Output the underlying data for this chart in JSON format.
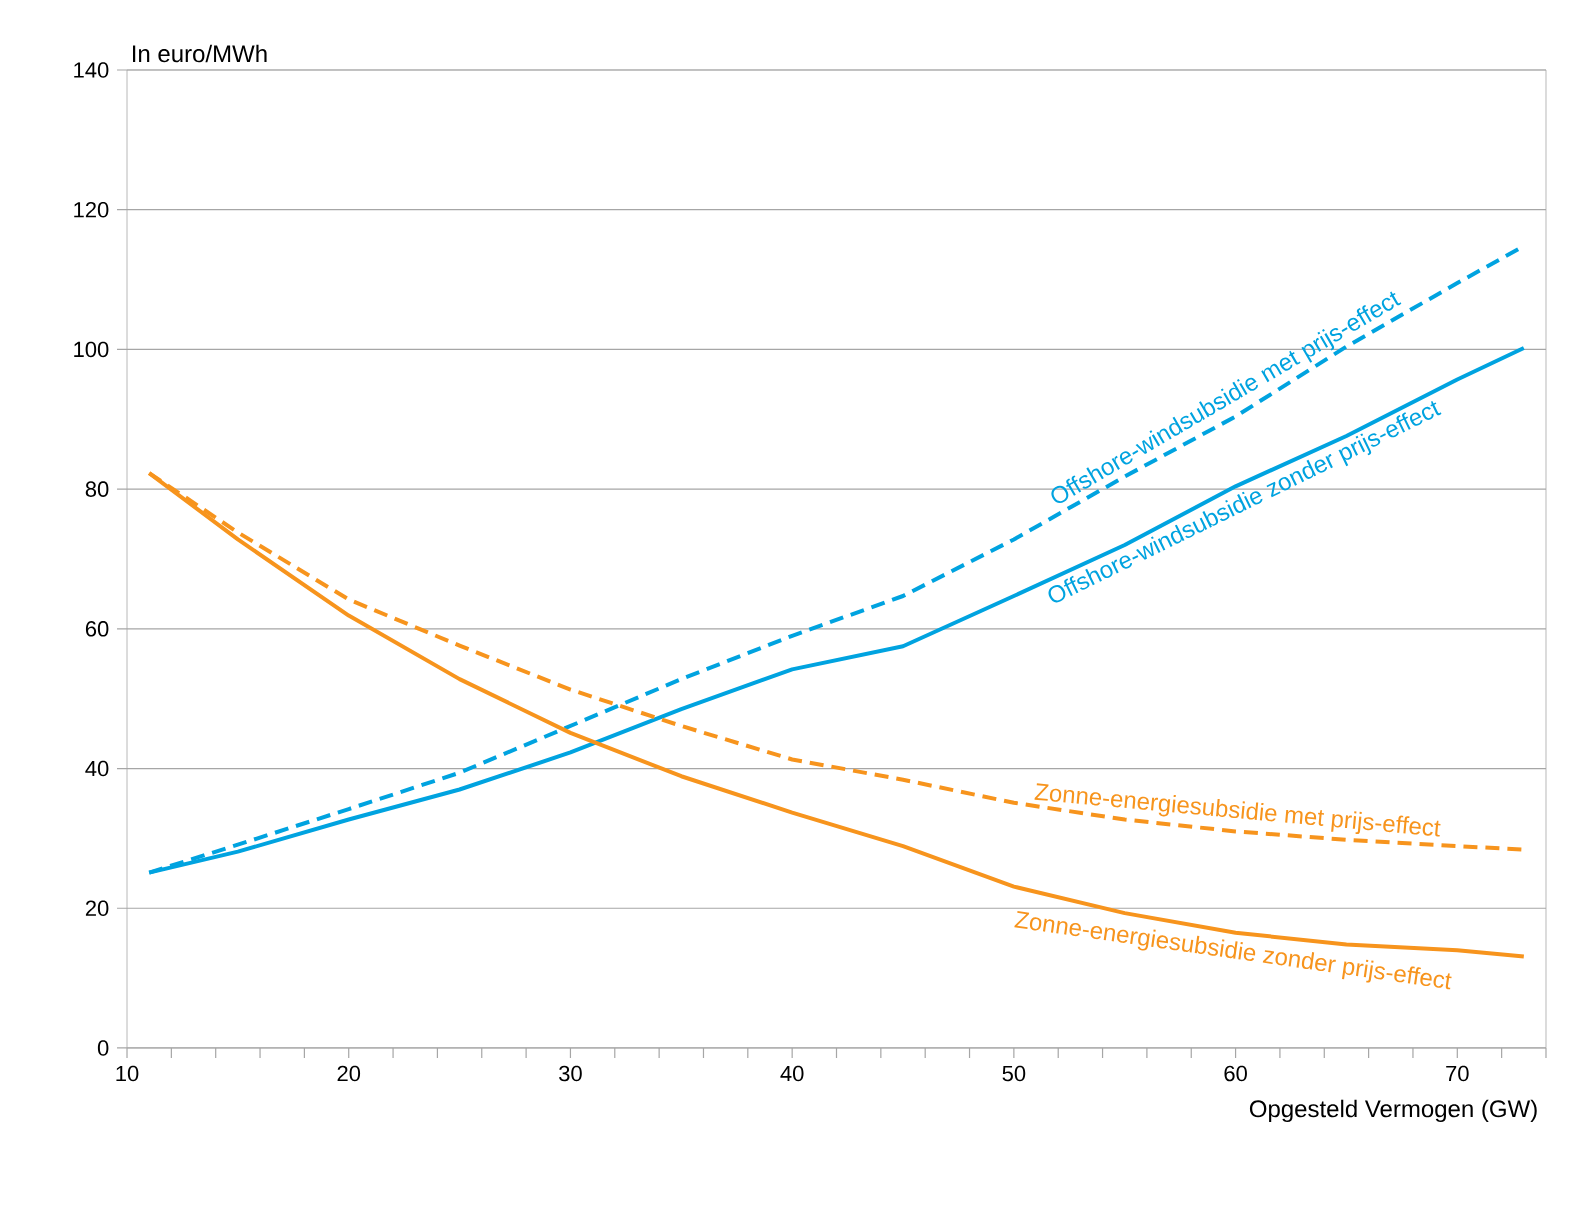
{
  "chart_data": {
    "type": "line",
    "ylabel": "In euro/MWh",
    "xlabel": "Opgesteld Vermogen (GW)",
    "xlim": [
      10,
      74
    ],
    "ylim": [
      0,
      140
    ],
    "xticks": [
      10,
      {
        "value": 12,
        "label": null
      },
      {
        "value": 14,
        "label": null
      },
      {
        "value": 16,
        "label": null
      },
      {
        "value": 18,
        "label": null
      },
      20,
      {
        "value": 22,
        "label": null
      },
      {
        "value": 24,
        "label": null
      },
      {
        "value": 26,
        "label": null
      },
      {
        "value": 28,
        "label": null
      },
      30,
      {
        "value": 32,
        "label": null
      },
      {
        "value": 34,
        "label": null
      },
      {
        "value": 36,
        "label": null
      },
      {
        "value": 38,
        "label": null
      },
      40,
      {
        "value": 42,
        "label": null
      },
      {
        "value": 44,
        "label": null
      },
      {
        "value": 46,
        "label": null
      },
      {
        "value": 48,
        "label": null
      },
      50,
      {
        "value": 52,
        "label": null
      },
      {
        "value": 54,
        "label": null
      },
      {
        "value": 56,
        "label": null
      },
      {
        "value": 58,
        "label": null
      },
      60,
      {
        "value": 62,
        "label": null
      },
      {
        "value": 64,
        "label": null
      },
      {
        "value": 66,
        "label": null
      },
      {
        "value": 68,
        "label": null
      },
      70,
      {
        "value": 72,
        "label": null
      },
      {
        "value": 74,
        "label": null
      }
    ],
    "yticks": [
      0,
      20,
      40,
      60,
      80,
      100,
      120,
      140
    ],
    "grid": "y",
    "marker": "none",
    "x": [
      11,
      15,
      20,
      25,
      30,
      35,
      40,
      45,
      50,
      55,
      60,
      65,
      70,
      73
    ],
    "series": [
      {
        "name": "Offshore-windsubsidie met prijs-effect",
        "color": "#00a3e0",
        "line_style": "dashed",
        "values": [
          25.1,
          29.1,
          34.2,
          39.4,
          46.1,
          52.8,
          59.0,
          64.7,
          72.8,
          81.8,
          90.4,
          100.4,
          109.5,
          114.8
        ]
      },
      {
        "name": "Offshore-windsubsidie zonder prijs-effect",
        "color": "#00a3e0",
        "line_style": "solid",
        "values": [
          25.1,
          28.1,
          32.7,
          37.0,
          42.3,
          48.5,
          54.2,
          57.5,
          64.7,
          72.0,
          80.4,
          87.6,
          95.7,
          100.2
        ]
      },
      {
        "name": "Zonne-energiesubsidie met prijs-effect",
        "color": "#f7941d",
        "line_style": "dashed",
        "values": [
          82.3,
          73.8,
          64.2,
          57.6,
          51.3,
          46.1,
          41.3,
          38.4,
          35.1,
          32.7,
          31.0,
          29.8,
          28.9,
          28.4
        ]
      },
      {
        "name": "Zonne-energiesubsidie zonder prijs-effect",
        "color": "#f7941d",
        "line_style": "solid",
        "values": [
          82.3,
          72.8,
          61.9,
          52.8,
          45.1,
          38.9,
          33.7,
          28.9,
          23.1,
          19.3,
          16.5,
          14.8,
          14.0,
          13.1
        ]
      }
    ]
  }
}
